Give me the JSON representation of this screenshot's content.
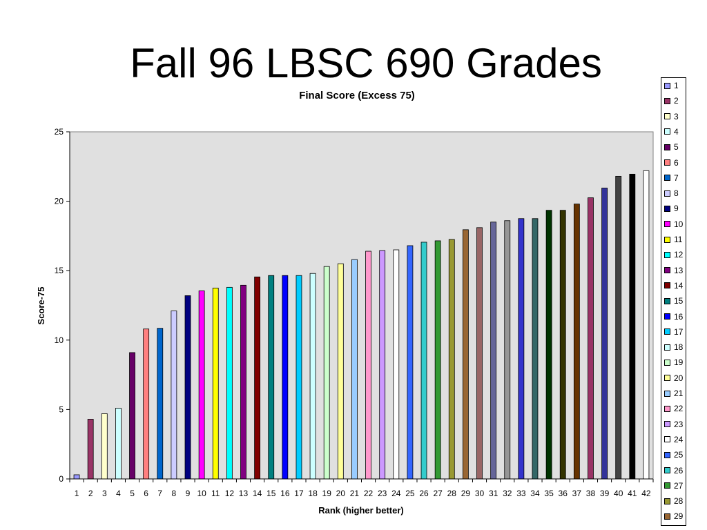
{
  "slide": {
    "title": "Fall 96 LBSC 690 Grades"
  },
  "chart_data": {
    "type": "bar",
    "title": "Final Score (Excess 75)",
    "xlabel": "Rank (higher better)",
    "ylabel": "Score-75",
    "ylim": [
      0,
      25
    ],
    "yticks": [
      0,
      5,
      10,
      15,
      20,
      25
    ],
    "grid": false,
    "legend_position": "right",
    "background_color": "#e0e0e0",
    "categories": [
      "1",
      "2",
      "3",
      "4",
      "5",
      "6",
      "7",
      "8",
      "9",
      "10",
      "11",
      "12",
      "13",
      "14",
      "15",
      "16",
      "17",
      "18",
      "19",
      "20",
      "21",
      "22",
      "23",
      "24",
      "25",
      "26",
      "27",
      "28",
      "29",
      "30",
      "31",
      "32",
      "33",
      "34",
      "35",
      "36",
      "37",
      "38",
      "39",
      "40",
      "41",
      "42"
    ],
    "values": [
      0.3,
      4.3,
      4.7,
      5.1,
      9.1,
      10.8,
      10.85,
      12.1,
      13.2,
      13.55,
      13.75,
      13.8,
      13.95,
      14.55,
      14.65,
      14.65,
      14.65,
      14.8,
      15.3,
      15.5,
      15.8,
      16.4,
      16.45,
      16.5,
      16.8,
      17.05,
      17.15,
      17.25,
      17.95,
      18.1,
      18.5,
      18.6,
      18.75,
      18.75,
      19.35,
      19.35,
      19.8,
      20.25,
      20.95,
      21.8,
      21.95,
      22.2
    ],
    "colors": [
      "#9999ff",
      "#993366",
      "#ffffcc",
      "#ccffff",
      "#660066",
      "#ff8080",
      "#0066cc",
      "#ccccff",
      "#000080",
      "#ff00ff",
      "#ffff00",
      "#00ffff",
      "#800080",
      "#800000",
      "#008080",
      "#0000ff",
      "#00ccff",
      "#ccffff",
      "#ccffcc",
      "#ffff99",
      "#99ccff",
      "#ff99cc",
      "#cc99ff",
      "#ffffff",
      "#3366ff",
      "#33cccc",
      "#339933",
      "#999933",
      "#996633",
      "#996666",
      "#666699",
      "#969696",
      "#3333cc",
      "#336666",
      "#003300",
      "#333300",
      "#663300",
      "#993366",
      "#333399",
      "#424242",
      "#000000",
      "#ffffff"
    ],
    "legend_entries": [
      "1",
      "2",
      "3",
      "4",
      "5",
      "6",
      "7",
      "8",
      "9",
      "10",
      "11",
      "12",
      "13",
      "14",
      "15",
      "16",
      "17",
      "18",
      "19",
      "20",
      "21",
      "22",
      "23",
      "24",
      "25",
      "26",
      "27",
      "28",
      "29"
    ]
  }
}
